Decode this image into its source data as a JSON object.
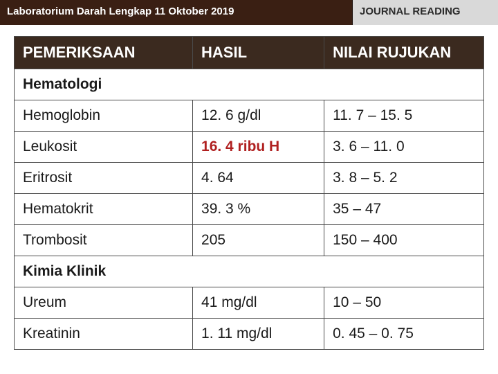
{
  "header": {
    "left_title": "Laboratorium Darah Lengkap 11 Oktober 2019",
    "right_title": "JOURNAL READING"
  },
  "table": {
    "columns": [
      "PEMERIKSAAN",
      "HASIL",
      "NILAI RUJUKAN"
    ],
    "sections": [
      {
        "title": "Hematologi",
        "rows": [
          {
            "name": "Hemoglobin",
            "result": "12. 6 g/dl",
            "ref": "11. 7 – 15. 5",
            "abnormal": false
          },
          {
            "name": "Leukosit",
            "result": "16. 4 ribu H",
            "ref": "3. 6 – 11. 0",
            "abnormal": true
          },
          {
            "name": "Eritrosit",
            "result": "4. 64",
            "ref": "3. 8 – 5. 2",
            "abnormal": false
          },
          {
            "name": "Hematokrit",
            "result": "39. 3 %",
            "ref": "35 – 47",
            "abnormal": false
          },
          {
            "name": "Trombosit",
            "result": "205",
            "ref": "150 – 400",
            "abnormal": false
          }
        ]
      },
      {
        "title": "Kimia Klinik",
        "rows": [
          {
            "name": "Ureum",
            "result": "41 mg/dl",
            "ref": "10 – 50",
            "abnormal": false
          },
          {
            "name": "Kreatinin",
            "result": "1. 11 mg/dl",
            "ref": "0. 45 – 0. 75",
            "abnormal": false
          }
        ]
      }
    ]
  },
  "colors": {
    "header_left_bg": "#3a1f13",
    "header_right_bg": "#d9d9d9",
    "thead_bg": "#3b2a1f",
    "border": "#4a4a4a",
    "abnormal_text": "#b02020"
  }
}
